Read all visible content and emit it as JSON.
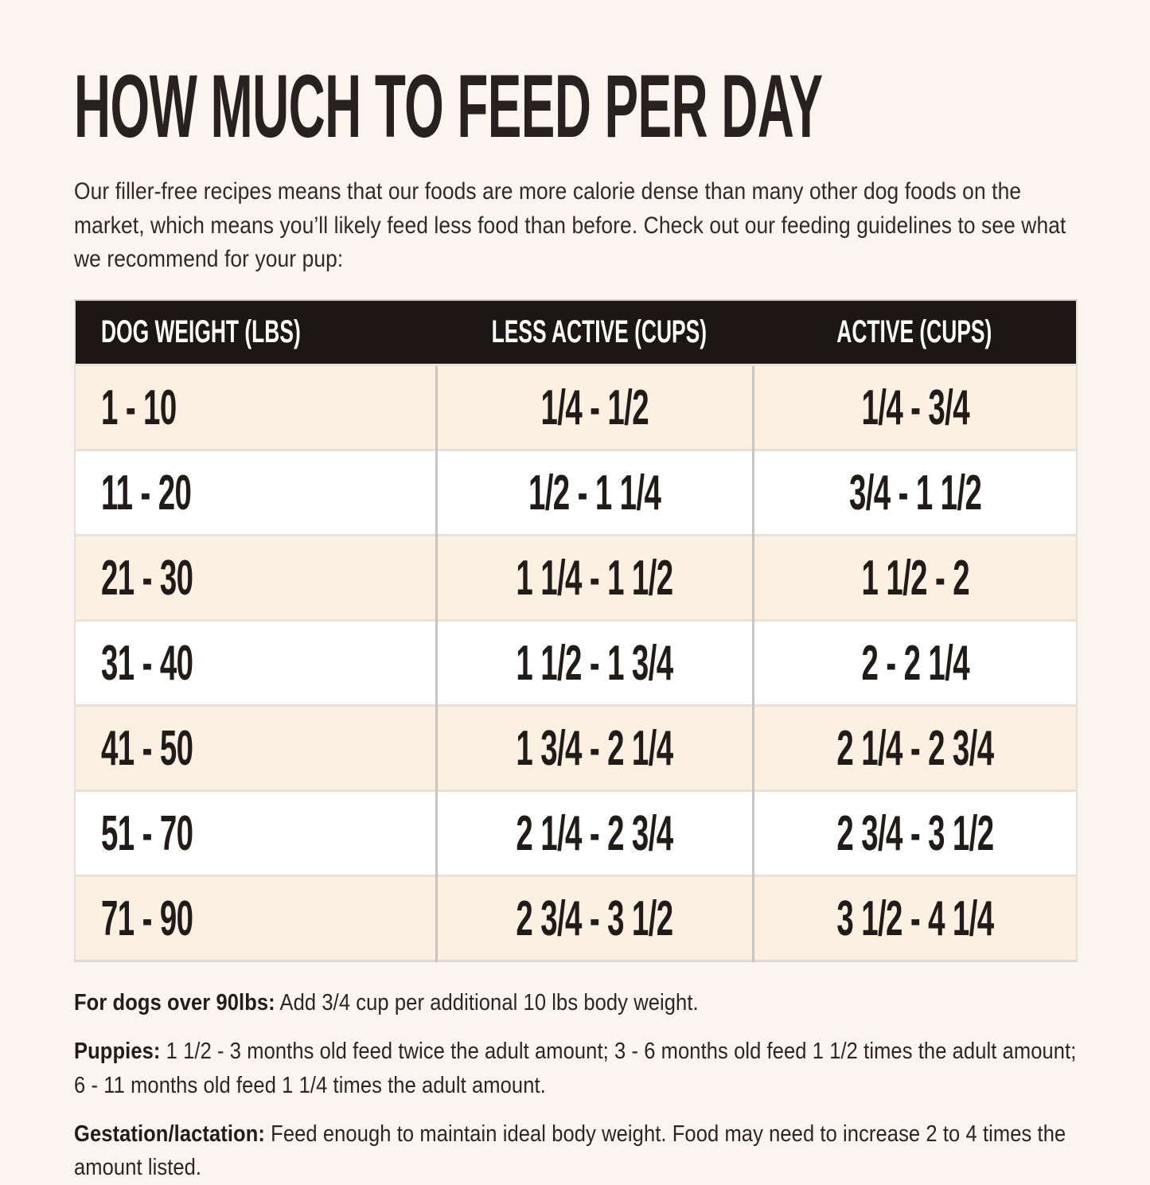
{
  "page": {
    "title": "HOW MUCH TO FEED PER DAY",
    "intro": "Our filler-free recipes means that our foods are more calorie dense than many other dog foods on the market, which means you’ll likely feed less food than before. Check out our feeding guidelines to see what we recommend for your pup:"
  },
  "colors": {
    "page_background": "#faf5ef",
    "header_background": "#1d1616",
    "header_text": "#ffffff",
    "row_cream": "#fbf0e2",
    "row_white": "#ffffff",
    "text": "#27211f"
  },
  "table": {
    "headers": [
      "DOG WEIGHT (LBS)",
      "LESS ACTIVE (CUPS)",
      "ACTIVE (CUPS)"
    ],
    "rows": [
      [
        "1 - 10",
        "1/4 - 1/2",
        "1/4 - 3/4"
      ],
      [
        "11 - 20",
        "1/2 - 1 1/4",
        "3/4 - 1 1/2"
      ],
      [
        "21 - 30",
        "1 1/4 - 1 1/2",
        "1 1/2 - 2"
      ],
      [
        "31 - 40",
        "1 1/2 - 1 3/4",
        "2 - 2 1/4"
      ],
      [
        "41 - 50",
        "1 3/4 - 2 1/4",
        "2 1/4 - 2 3/4"
      ],
      [
        "51 - 70",
        "2 1/4 - 2 3/4",
        "2 3/4 - 3 1/2"
      ],
      [
        "71 - 90",
        "2 3/4 - 3 1/2",
        "3 1/2 - 4 1/4"
      ]
    ]
  },
  "notes": [
    {
      "label": "For dogs over 90lbs:",
      "text": " Add 3/4 cup per additional 10 lbs body weight."
    },
    {
      "label": "Puppies:",
      "text": " 1 1/2 - 3 months old feed twice the adult amount; 3 - 6 months old feed 1 1/2 times the adult amount; 6 - 11 months old feed 1 1/4 times the adult amount."
    },
    {
      "label": "Gestation/lactation:",
      "text": " Feed enough to maintain ideal body weight. Food may need to increase 2 to 4 times the amount listed."
    }
  ]
}
